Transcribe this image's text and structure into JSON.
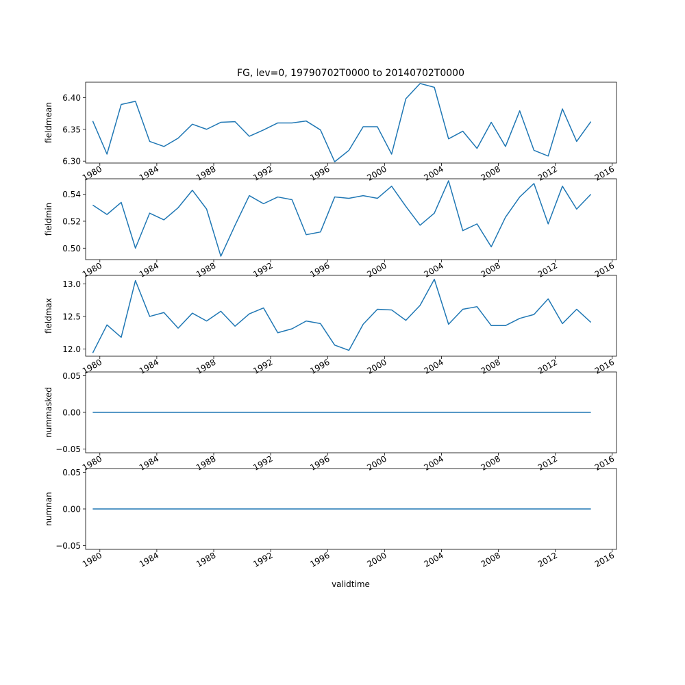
{
  "figure": {
    "title": "FG, lev=0, 19790702T0000 to 20140702T0000",
    "xlabel": "validtime",
    "line_color": "#1f77b4"
  },
  "chart_data": [
    {
      "type": "line",
      "ylabel": "fieldmean",
      "xlim": [
        1979.0,
        2016.3
      ],
      "ylim": [
        6.297,
        6.424
      ],
      "yticks": [
        6.3,
        6.35,
        6.4
      ],
      "ytick_labels": [
        "6.30",
        "6.35",
        "6.40"
      ],
      "xticks": [
        1980,
        1984,
        1988,
        1992,
        1996,
        2000,
        2004,
        2008,
        2012,
        2016
      ],
      "xtick_labels": [
        "1980",
        "1984",
        "1988",
        "1992",
        "1996",
        "2000",
        "2004",
        "2008",
        "2012",
        "2016"
      ],
      "x": [
        1979.5,
        1980.5,
        1981.5,
        1982.5,
        1983.5,
        1984.5,
        1985.5,
        1986.5,
        1987.5,
        1988.5,
        1989.5,
        1990.5,
        1991.5,
        1992.5,
        1993.5,
        1994.5,
        1995.5,
        1996.5,
        1997.5,
        1998.5,
        1999.5,
        2000.5,
        2001.5,
        2002.5,
        2003.5,
        2004.5,
        2005.5,
        2006.5,
        2007.5,
        2008.5,
        2009.5,
        2010.5,
        2011.5,
        2012.5,
        2013.5,
        2014.5
      ],
      "y": [
        6.363,
        6.311,
        6.389,
        6.394,
        6.331,
        6.323,
        6.336,
        6.358,
        6.35,
        6.361,
        6.362,
        6.339,
        6.349,
        6.36,
        6.36,
        6.363,
        6.349,
        6.299,
        6.317,
        6.354,
        6.354,
        6.311,
        6.398,
        6.422,
        6.416,
        6.335,
        6.347,
        6.32,
        6.361,
        6.323,
        6.379,
        6.317,
        6.308,
        6.382,
        6.331,
        6.362
      ]
    },
    {
      "type": "line",
      "ylabel": "fieldmin",
      "xlim": [
        1979.0,
        2016.3
      ],
      "ylim": [
        0.4915,
        0.5515
      ],
      "yticks": [
        0.5,
        0.52,
        0.54
      ],
      "ytick_labels": [
        "0.50",
        "0.52",
        "0.54"
      ],
      "xticks": [
        1980,
        1984,
        1988,
        1992,
        1996,
        2000,
        2004,
        2008,
        2012,
        2016
      ],
      "xtick_labels": [
        "1980",
        "1984",
        "1988",
        "1992",
        "1996",
        "2000",
        "2004",
        "2008",
        "2012",
        "2016"
      ],
      "x": [
        1979.5,
        1980.5,
        1981.5,
        1982.5,
        1983.5,
        1984.5,
        1985.5,
        1986.5,
        1987.5,
        1988.5,
        1989.5,
        1990.5,
        1991.5,
        1992.5,
        1993.5,
        1994.5,
        1995.5,
        1996.5,
        1997.5,
        1998.5,
        1999.5,
        2000.5,
        2001.5,
        2002.5,
        2003.5,
        2004.5,
        2005.5,
        2006.5,
        2007.5,
        2008.5,
        2009.5,
        2010.5,
        2011.5,
        2012.5,
        2013.5,
        2014.5
      ],
      "y": [
        0.532,
        0.525,
        0.534,
        0.5,
        0.526,
        0.521,
        0.53,
        0.543,
        0.529,
        0.494,
        0.517,
        0.539,
        0.533,
        0.538,
        0.536,
        0.51,
        0.512,
        0.538,
        0.537,
        0.539,
        0.537,
        0.546,
        0.531,
        0.517,
        0.526,
        0.55,
        0.513,
        0.518,
        0.501,
        0.523,
        0.538,
        0.548,
        0.518,
        0.546,
        0.529,
        0.54
      ]
    },
    {
      "type": "line",
      "ylabel": "fieldmax",
      "xlim": [
        1979.0,
        2016.3
      ],
      "ylim": [
        11.89,
        13.13
      ],
      "yticks": [
        12.0,
        12.5,
        13.0
      ],
      "ytick_labels": [
        "12.0",
        "12.5",
        "13.0"
      ],
      "xticks": [
        1980,
        1984,
        1988,
        1992,
        1996,
        2000,
        2004,
        2008,
        2012,
        2016
      ],
      "xtick_labels": [
        "1980",
        "1984",
        "1988",
        "1992",
        "1996",
        "2000",
        "2004",
        "2008",
        "2012",
        "2016"
      ],
      "x": [
        1979.5,
        1980.5,
        1981.5,
        1982.5,
        1983.5,
        1984.5,
        1985.5,
        1986.5,
        1987.5,
        1988.5,
        1989.5,
        1990.5,
        1991.5,
        1992.5,
        1993.5,
        1994.5,
        1995.5,
        1996.5,
        1997.5,
        1998.5,
        1999.5,
        2000.5,
        2001.5,
        2002.5,
        2003.5,
        2004.5,
        2005.5,
        2006.5,
        2007.5,
        2008.5,
        2009.5,
        2010.5,
        2011.5,
        2012.5,
        2013.5,
        2014.5
      ],
      "y": [
        11.94,
        12.37,
        12.18,
        13.05,
        12.5,
        12.56,
        12.32,
        12.55,
        12.43,
        12.58,
        12.35,
        12.54,
        12.63,
        12.25,
        12.31,
        12.43,
        12.39,
        12.06,
        11.98,
        12.38,
        12.61,
        12.6,
        12.44,
        12.67,
        13.07,
        12.38,
        12.61,
        12.65,
        12.36,
        12.36,
        12.47,
        12.53,
        12.77,
        12.39,
        12.61,
        12.41
      ]
    },
    {
      "type": "line",
      "ylabel": "nummasked",
      "xlim": [
        1979.0,
        2016.3
      ],
      "ylim": [
        -0.055,
        0.055
      ],
      "yticks": [
        -0.05,
        0.0,
        0.05
      ],
      "ytick_labels": [
        "−0.05",
        "0.00",
        "0.05"
      ],
      "xticks": [
        1980,
        1984,
        1988,
        1992,
        1996,
        2000,
        2004,
        2008,
        2012,
        2016
      ],
      "xtick_labels": [
        "1980",
        "1984",
        "1988",
        "1992",
        "1996",
        "2000",
        "2004",
        "2008",
        "2012",
        "2016"
      ],
      "x": [
        1979.5,
        2014.5
      ],
      "y": [
        0,
        0
      ]
    },
    {
      "type": "line",
      "ylabel": "numnan",
      "xlim": [
        1979.0,
        2016.3
      ],
      "ylim": [
        -0.055,
        0.055
      ],
      "yticks": [
        -0.05,
        0.0,
        0.05
      ],
      "ytick_labels": [
        "−0.05",
        "0.00",
        "0.05"
      ],
      "xticks": [
        1980,
        1984,
        1988,
        1992,
        1996,
        2000,
        2004,
        2008,
        2012,
        2016
      ],
      "xtick_labels": [
        "1980",
        "1984",
        "1988",
        "1992",
        "1996",
        "2000",
        "2004",
        "2008",
        "2012",
        "2016"
      ],
      "x": [
        1979.5,
        2014.5
      ],
      "y": [
        0,
        0
      ]
    }
  ]
}
